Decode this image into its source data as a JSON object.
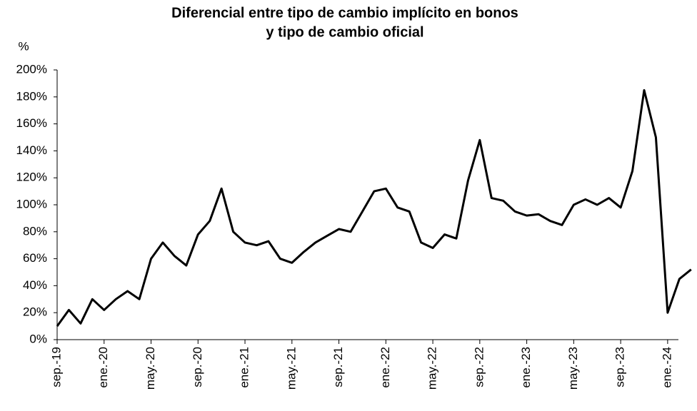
{
  "chart_data": {
    "type": "line",
    "title": [
      "Diferencial entre tipo de cambio implícito en bonos",
      "y tipo de cambio oficial"
    ],
    "y_unit_label": "%",
    "x": [
      "2019-09",
      "2019-10",
      "2019-11",
      "2019-12",
      "2020-01",
      "2020-02",
      "2020-03",
      "2020-04",
      "2020-05",
      "2020-06",
      "2020-07",
      "2020-08",
      "2020-09",
      "2020-10",
      "2020-11",
      "2020-12",
      "2021-01",
      "2021-02",
      "2021-03",
      "2021-04",
      "2021-05",
      "2021-06",
      "2021-07",
      "2021-08",
      "2021-09",
      "2021-10",
      "2021-11",
      "2021-12",
      "2022-01",
      "2022-02",
      "2022-03",
      "2022-04",
      "2022-05",
      "2022-06",
      "2022-07",
      "2022-08",
      "2022-09",
      "2022-10",
      "2022-11",
      "2022-12",
      "2023-01",
      "2023-02",
      "2023-03",
      "2023-04",
      "2023-05",
      "2023-06",
      "2023-07",
      "2023-08",
      "2023-09",
      "2023-10",
      "2023-11",
      "2023-12",
      "2024-01",
      "2024-02",
      "2024-03"
    ],
    "series": [
      {
        "name": "Diferencial",
        "color": "#000000",
        "values": [
          10,
          22,
          12,
          30,
          22,
          30,
          36,
          30,
          60,
          72,
          62,
          55,
          78,
          88,
          112,
          80,
          72,
          70,
          73,
          60,
          57,
          65,
          72,
          77,
          82,
          80,
          95,
          110,
          112,
          98,
          95,
          72,
          68,
          78,
          75,
          118,
          148,
          105,
          103,
          95,
          92,
          93,
          88,
          85,
          100,
          104,
          100,
          105,
          98,
          125,
          185,
          150,
          20,
          45,
          52
        ]
      }
    ],
    "xticks": [
      {
        "value": "2019-09",
        "label": "sep.-19"
      },
      {
        "value": "2020-01",
        "label": "ene.-20"
      },
      {
        "value": "2020-05",
        "label": "may.-20"
      },
      {
        "value": "2020-09",
        "label": "sep.-20"
      },
      {
        "value": "2021-01",
        "label": "ene.-21"
      },
      {
        "value": "2021-05",
        "label": "may.-21"
      },
      {
        "value": "2021-09",
        "label": "sep.-21"
      },
      {
        "value": "2022-01",
        "label": "ene.-22"
      },
      {
        "value": "2022-05",
        "label": "may.-22"
      },
      {
        "value": "2022-09",
        "label": "sep.-22"
      },
      {
        "value": "2023-01",
        "label": "ene.-23"
      },
      {
        "value": "2023-05",
        "label": "may.-23"
      },
      {
        "value": "2023-09",
        "label": "sep.-23"
      },
      {
        "value": "2024-01",
        "label": "ene.-24"
      }
    ],
    "ylim": [
      0,
      200
    ],
    "yticks": [
      {
        "value": 0,
        "label": "0%"
      },
      {
        "value": 20,
        "label": "20%"
      },
      {
        "value": 40,
        "label": "40%"
      },
      {
        "value": 60,
        "label": "60%"
      },
      {
        "value": 80,
        "label": "80%"
      },
      {
        "value": 100,
        "label": "100%"
      },
      {
        "value": 120,
        "label": "120%"
      },
      {
        "value": 140,
        "label": "140%"
      },
      {
        "value": 160,
        "label": "160%"
      },
      {
        "value": 180,
        "label": "180%"
      },
      {
        "value": 200,
        "label": "200%"
      }
    ],
    "grid": false
  }
}
